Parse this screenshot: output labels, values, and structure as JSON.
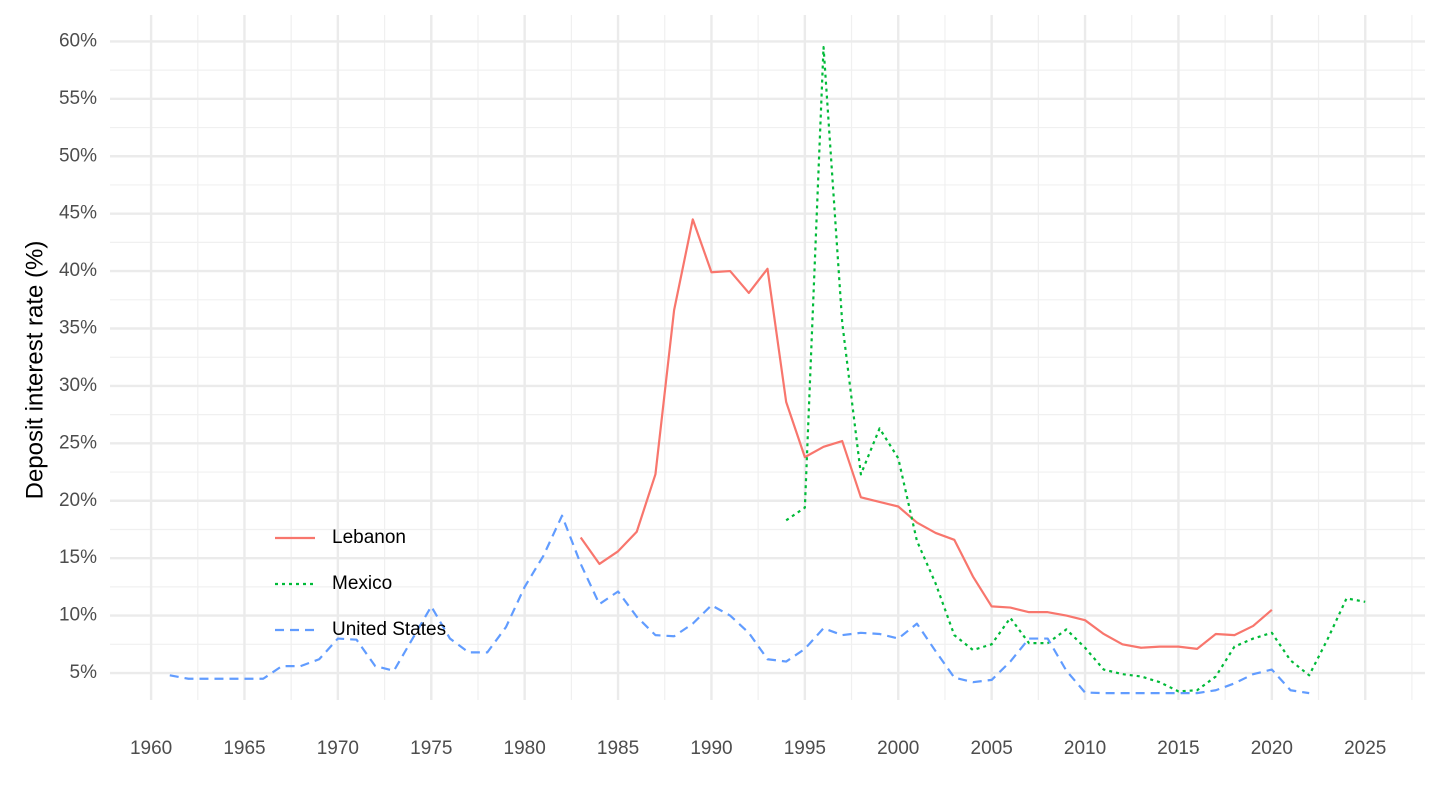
{
  "chart_data": {
    "type": "line",
    "y_label": "Deposit interest rate (%)",
    "x": [
      1961,
      1962,
      1963,
      1964,
      1965,
      1966,
      1967,
      1968,
      1969,
      1970,
      1971,
      1972,
      1973,
      1974,
      1975,
      1976,
      1977,
      1978,
      1979,
      1980,
      1981,
      1982,
      1983,
      1984,
      1985,
      1986,
      1987,
      1988,
      1989,
      1990,
      1991,
      1992,
      1993,
      1994,
      1995,
      1996,
      1997,
      1998,
      1999,
      2000,
      2001,
      2002,
      2003,
      2004,
      2005,
      2006,
      2007,
      2008,
      2009,
      2010,
      2011,
      2012,
      2013,
      2014,
      2015,
      2016,
      2017,
      2018,
      2019,
      2020,
      2021,
      2022,
      2023,
      2024,
      2025
    ],
    "series": [
      {
        "name": "Lebanon",
        "color": "#F8766D",
        "dash": "solid",
        "values": [
          null,
          null,
          null,
          null,
          null,
          null,
          null,
          null,
          null,
          null,
          null,
          null,
          null,
          null,
          null,
          null,
          null,
          null,
          null,
          null,
          null,
          null,
          16.8,
          14.5,
          15.6,
          17.3,
          22.3,
          36.6,
          44.5,
          39.9,
          40.0,
          38.1,
          40.2,
          28.6,
          23.8,
          24.7,
          25.2,
          20.3,
          19.9,
          19.5,
          18.1,
          17.2,
          16.6,
          13.4,
          10.8,
          10.7,
          10.3,
          10.3,
          10.0,
          9.6,
          8.4,
          7.5,
          7.2,
          7.3,
          7.3,
          7.1,
          8.4,
          8.3,
          9.1,
          10.5,
          null,
          null,
          null,
          null,
          null
        ]
      },
      {
        "name": "Mexico",
        "color": "#00BA38",
        "dash": "dotted",
        "values": [
          null,
          null,
          null,
          null,
          null,
          null,
          null,
          null,
          null,
          null,
          null,
          null,
          null,
          null,
          null,
          null,
          null,
          null,
          null,
          null,
          null,
          null,
          null,
          null,
          null,
          null,
          null,
          null,
          null,
          null,
          null,
          null,
          null,
          18.3,
          19.4,
          59.5,
          35.5,
          22.3,
          26.3,
          23.7,
          16.5,
          12.8,
          8.3,
          7.0,
          7.5,
          9.8,
          7.6,
          7.6,
          8.8,
          7.2,
          5.3,
          4.9,
          4.7,
          4.2,
          3.4,
          3.5,
          4.7,
          7.3,
          8.0,
          8.5,
          6.1,
          4.8,
          8.0,
          11.5,
          11.2
        ]
      },
      {
        "name": "United States",
        "color": "#619CFF",
        "dash": "dashed",
        "values": [
          4.8,
          4.5,
          4.5,
          4.5,
          4.5,
          4.5,
          5.6,
          5.6,
          6.2,
          8.0,
          7.9,
          5.6,
          5.2,
          8.0,
          10.8,
          8.0,
          6.8,
          6.8,
          9.0,
          12.5,
          15.2,
          18.7,
          14.5,
          11.0,
          12.1,
          9.9,
          8.3,
          8.2,
          9.3,
          10.9,
          10.0,
          8.5,
          6.2,
          6.0,
          7.1,
          8.9,
          8.3,
          8.5,
          8.4,
          8.0,
          9.3,
          6.9,
          4.6,
          4.2,
          4.4,
          6.0,
          8.0,
          8.0,
          5.2,
          3.3,
          3.25,
          3.25,
          3.25,
          3.25,
          3.25,
          3.25,
          3.5,
          4.1,
          4.9,
          5.3,
          3.5,
          3.25,
          null,
          null,
          null
        ]
      }
    ],
    "xlim": [
      1957.8,
      2028.2
    ],
    "xticks": [
      1960,
      1965,
      1970,
      1975,
      1980,
      1985,
      1990,
      1995,
      2000,
      2005,
      2010,
      2015,
      2020,
      2025
    ],
    "x_minor_ticks": [
      1962.5,
      1967.5,
      1972.5,
      1977.5,
      1982.5,
      1987.5,
      1992.5,
      1997.5,
      2002.5,
      2007.5,
      2012.5,
      2017.5,
      2022.5,
      2027.5
    ],
    "ylim": [
      2.65,
      62.3
    ],
    "yticks": [
      {
        "value": 5,
        "label": "5%"
      },
      {
        "value": 10,
        "label": "10%"
      },
      {
        "value": 15,
        "label": "15%"
      },
      {
        "value": 20,
        "label": "20%"
      },
      {
        "value": 25,
        "label": "25%"
      },
      {
        "value": 30,
        "label": "30%"
      },
      {
        "value": 35,
        "label": "35%"
      },
      {
        "value": 40,
        "label": "40%"
      },
      {
        "value": 45,
        "label": "45%"
      },
      {
        "value": 50,
        "label": "50%"
      },
      {
        "value": 55,
        "label": "55%"
      },
      {
        "value": 60,
        "label": "60%"
      }
    ],
    "y_minor_ticks": [
      7.5,
      12.5,
      17.5,
      22.5,
      27.5,
      32.5,
      37.5,
      42.5,
      47.5,
      52.5,
      57.5
    ],
    "grid": true,
    "legend_position": "left"
  }
}
